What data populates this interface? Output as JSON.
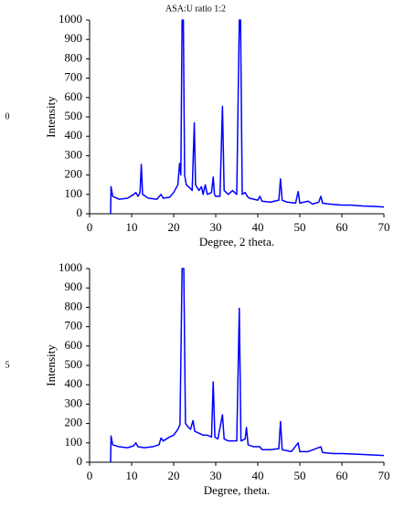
{
  "chart_data": [
    {
      "type": "line",
      "title": "ASA:U ratio 1:2",
      "annotation": "0",
      "xlabel": "Degree, 2 theta.",
      "ylabel": "Intensity",
      "color": "#0000ff",
      "xlim": [
        0,
        70
      ],
      "xticks": [
        0,
        10,
        20,
        30,
        40,
        50,
        60,
        70
      ],
      "ylim": [
        0,
        1000
      ],
      "yticks": [
        0,
        100,
        200,
        300,
        400,
        500,
        600,
        700,
        800,
        900,
        1000
      ],
      "x": [
        5,
        5.1,
        5.5,
        7,
        9,
        10.5,
        11,
        11.5,
        12,
        12.3,
        12.6,
        14,
        16,
        17,
        17.5,
        19,
        20,
        21,
        21.4,
        21.7,
        22,
        22.3,
        22.6,
        23,
        24,
        24.4,
        24.9,
        25.2,
        26,
        26.6,
        27,
        27.5,
        28,
        29,
        29.4,
        29.7,
        30,
        31,
        31.6,
        32,
        33,
        34,
        35,
        35.6,
        35.9,
        36.3,
        37,
        37.5,
        38,
        40,
        40.5,
        41,
        43,
        45,
        45.4,
        45.8,
        47,
        49,
        49.6,
        50,
        51,
        52,
        53,
        54.5,
        55,
        55.4,
        57,
        60,
        62,
        65,
        68,
        70
      ],
      "values": [
        0,
        140,
        90,
        75,
        80,
        100,
        110,
        90,
        110,
        255,
        100,
        80,
        75,
        100,
        80,
        85,
        110,
        150,
        260,
        200,
        1000,
        1000,
        200,
        150,
        130,
        120,
        470,
        150,
        120,
        140,
        100,
        150,
        100,
        110,
        190,
        100,
        90,
        90,
        555,
        120,
        100,
        120,
        100,
        1000,
        1000,
        100,
        110,
        90,
        80,
        70,
        90,
        65,
        60,
        70,
        180,
        70,
        60,
        55,
        115,
        55,
        60,
        65,
        50,
        60,
        90,
        55,
        50,
        45,
        45,
        40,
        38,
        35
      ]
    },
    {
      "type": "line",
      "annotation": "5",
      "xlabel": "Degree, theta.",
      "ylabel": "Intensity",
      "color": "#0000ff",
      "xlim": [
        0,
        70
      ],
      "xticks": [
        0,
        10,
        20,
        30,
        40,
        50,
        60,
        70
      ],
      "ylim": [
        0,
        1000
      ],
      "yticks": [
        0,
        100,
        200,
        300,
        400,
        500,
        600,
        700,
        800,
        900,
        1000
      ],
      "x": [
        5,
        5.1,
        5.5,
        7,
        9,
        10.5,
        11,
        11.5,
        13,
        15,
        16.5,
        17,
        17.5,
        19,
        20,
        21,
        21.5,
        22,
        22.4,
        22.8,
        23.5,
        24,
        24.6,
        25,
        26,
        27,
        28,
        29,
        29.4,
        29.8,
        30.5,
        31.6,
        32,
        33,
        34,
        35,
        35.6,
        36,
        37,
        37.3,
        37.7,
        39,
        40.5,
        41,
        43,
        45,
        45.4,
        45.8,
        48,
        49.6,
        50,
        52,
        55,
        55.4,
        58,
        60,
        65,
        70
      ],
      "values": [
        0,
        135,
        90,
        80,
        75,
        85,
        100,
        80,
        75,
        80,
        90,
        125,
        110,
        130,
        140,
        170,
        195,
        1000,
        1000,
        200,
        180,
        170,
        215,
        160,
        150,
        140,
        140,
        130,
        415,
        130,
        120,
        245,
        120,
        110,
        110,
        110,
        795,
        110,
        120,
        180,
        90,
        80,
        80,
        65,
        65,
        70,
        210,
        65,
        55,
        100,
        55,
        55,
        80,
        50,
        45,
        45,
        40,
        35
      ]
    }
  ]
}
